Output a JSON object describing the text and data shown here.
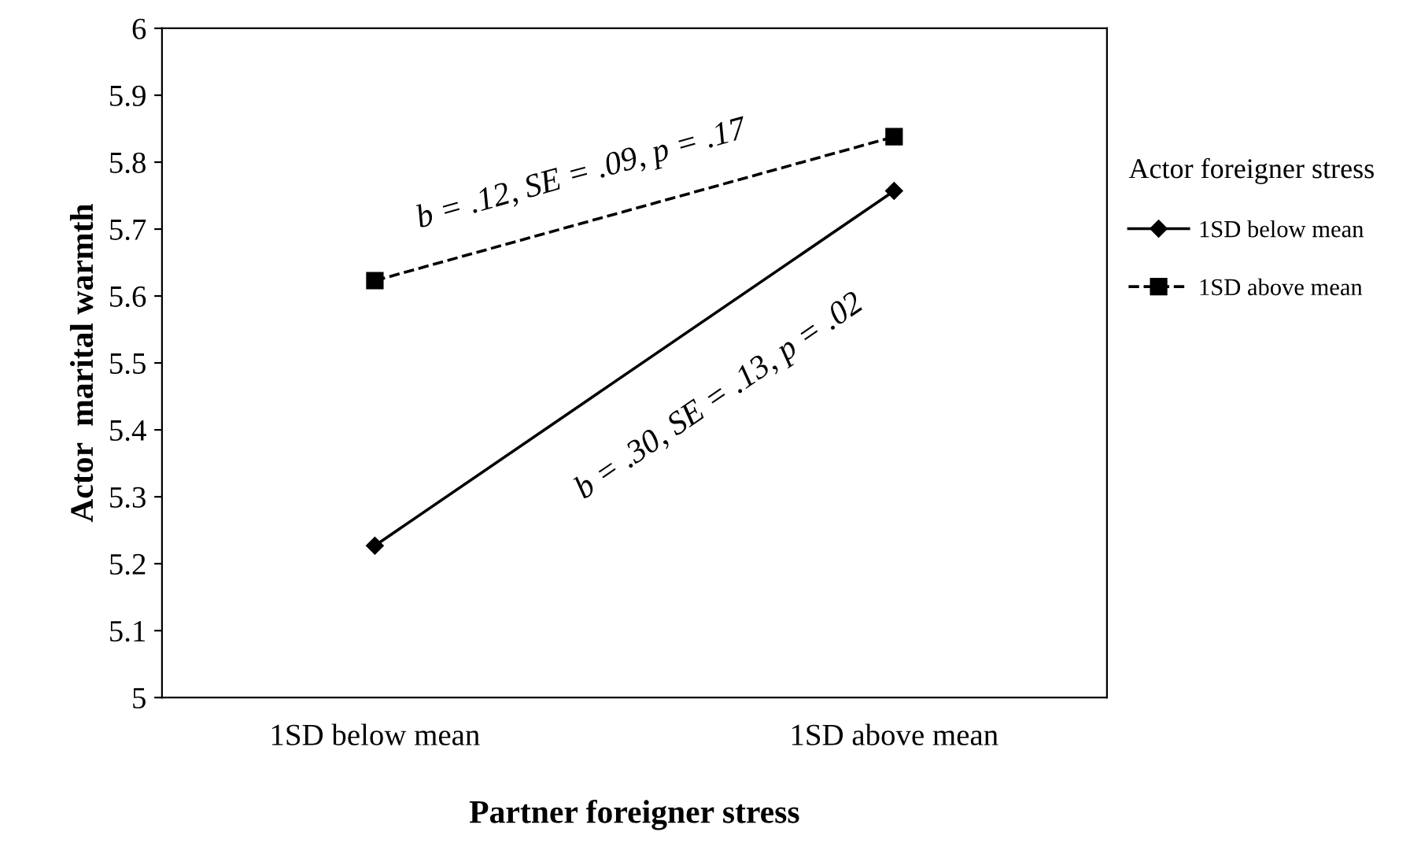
{
  "chart_data": {
    "type": "line",
    "xlabel": "Partner foreigner stress",
    "ylabel": "Actor  marital warmth",
    "legend_title": "Actor foreigner stress",
    "categories": [
      "1SD below mean",
      "1SD above mean"
    ],
    "series": [
      {
        "name": "1SD below mean",
        "color": "#000000",
        "values": [
          5.227,
          5.757
        ],
        "marker": "diamond",
        "line_style": "solid"
      },
      {
        "name": "1SD above mean",
        "color": "#000000",
        "values": [
          5.623,
          5.838
        ],
        "marker": "square",
        "line_style": "dashed"
      }
    ],
    "ylim": [
      5,
      6
    ],
    "yticks": [
      5,
      5.1,
      5.2,
      5.3,
      5.4,
      5.5,
      5.6,
      5.7,
      5.8,
      5.9,
      6
    ],
    "grid": false,
    "legend": "right",
    "annotations": [
      "b = .30, SE = .13, p = .02",
      "b = .12, SE = .09, p = .17"
    ]
  }
}
